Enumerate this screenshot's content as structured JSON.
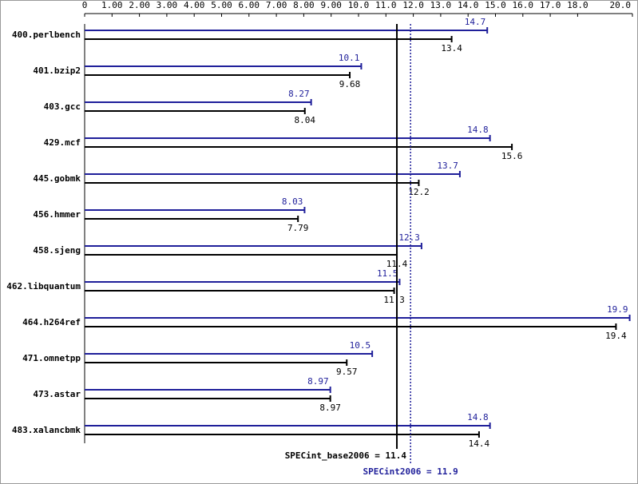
{
  "chart_data": {
    "type": "bar",
    "orientation": "horizontal",
    "categories": [
      "400.perlbench",
      "401.bzip2",
      "403.gcc",
      "429.mcf",
      "445.gobmk",
      "456.hmmer",
      "458.sjeng",
      "462.libquantum",
      "464.h264ref",
      "471.omnetpp",
      "473.astar",
      "483.xalancbmk"
    ],
    "series": [
      {
        "color": "#1f1f9a",
        "values": [
          14.7,
          10.1,
          8.27,
          14.8,
          13.7,
          8.03,
          12.3,
          11.5,
          19.9,
          10.5,
          8.97,
          14.8
        ]
      },
      {
        "color": "#000000",
        "values": [
          13.4,
          9.68,
          8.04,
          15.6,
          12.2,
          7.79,
          11.4,
          11.3,
          19.4,
          9.57,
          8.97,
          14.4
        ]
      }
    ],
    "xlim": [
      0,
      20
    ],
    "xticks": [
      0,
      {
        "value": 1,
        "label": "1.00"
      },
      {
        "value": 2,
        "label": "2.00"
      },
      {
        "value": 3,
        "label": "3.00"
      },
      {
        "value": 4,
        "label": "4.00"
      },
      {
        "value": 5,
        "label": "5.00"
      },
      {
        "value": 6,
        "label": "6.00"
      },
      {
        "value": 7,
        "label": "7.00"
      },
      {
        "value": 8,
        "label": "8.00"
      },
      {
        "value": 9,
        "label": "9.00"
      },
      {
        "value": 10,
        "label": "10.0"
      },
      {
        "value": 11,
        "label": "11.0"
      },
      {
        "value": 12,
        "label": "12.0"
      },
      {
        "value": 13,
        "label": "13.0"
      },
      {
        "value": 14,
        "label": "14.0"
      },
      {
        "value": 15,
        "label": "15.0"
      },
      {
        "value": 16,
        "label": "16.0"
      },
      {
        "value": 17,
        "label": "17.0"
      },
      {
        "value": 18,
        "label": "18.0"
      },
      {
        "value": 20,
        "label": "20.0"
      }
    ],
    "reference_lines": [
      {
        "label": "SPECint_base2006 = 11.4",
        "value": 11.4,
        "color": "#000000",
        "style": "solid"
      },
      {
        "label": "SPECint2006 = 11.9",
        "value": 11.9,
        "color": "#1f1f9a",
        "style": "dotted"
      }
    ]
  }
}
